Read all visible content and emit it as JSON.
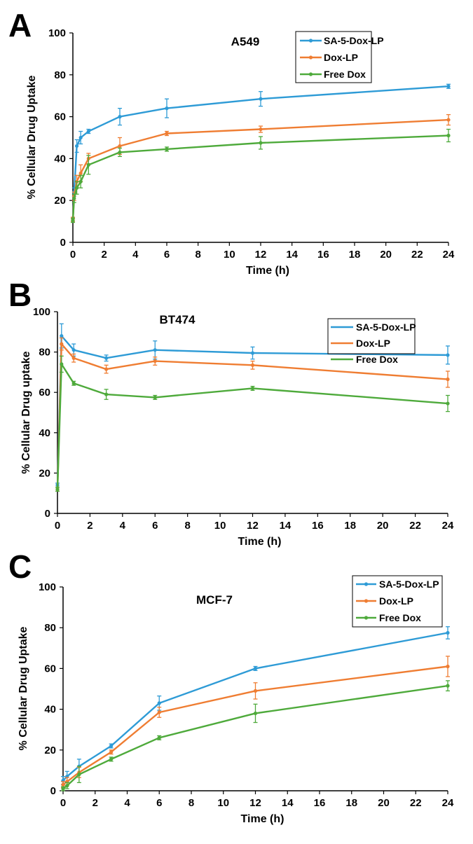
{
  "colors": {
    "SA-5-Dox-LP": "#2e9bd6",
    "Dox-LP": "#ef7d32",
    "Free Dox": "#4eaa3b"
  },
  "chart_data": [
    {
      "panel": "A",
      "type": "line",
      "title": "A549",
      "xlabel": "Time (h)",
      "ylabel": "% Cellular Drug Uptake",
      "xlim": [
        0,
        24
      ],
      "ylim": [
        0,
        100
      ],
      "xticks": [
        0,
        2,
        4,
        6,
        8,
        10,
        12,
        14,
        16,
        18,
        20,
        22,
        24
      ],
      "yticks": [
        0,
        20,
        40,
        60,
        80,
        100
      ],
      "legend_style": "marker",
      "legend_position": "top-right",
      "series": [
        {
          "name": "SA-5-Dox-LP",
          "x": [
            0,
            0.08,
            0.25,
            0.5,
            1,
            3,
            6,
            12,
            24
          ],
          "y": [
            11,
            24,
            46,
            50,
            53,
            60,
            64,
            68.5,
            74.5
          ],
          "err": [
            1,
            2,
            3,
            3,
            1,
            4,
            4.5,
            3.5,
            1
          ]
        },
        {
          "name": "Dox-LP",
          "x": [
            0,
            0.08,
            0.25,
            0.5,
            1,
            3,
            6,
            12,
            24
          ],
          "y": [
            11,
            22,
            29,
            33,
            40,
            46,
            52,
            54,
            58.5
          ],
          "err": [
            1,
            2,
            3,
            4,
            2.5,
            4,
            1,
            1.5,
            2.5
          ]
        },
        {
          "name": "Free Dox",
          "x": [
            0,
            0.08,
            0.25,
            0.5,
            1,
            3,
            6,
            12,
            24
          ],
          "y": [
            10.5,
            21,
            26,
            29,
            37,
            43,
            44.5,
            47.5,
            51
          ],
          "err": [
            1,
            2,
            3,
            3,
            4.5,
            2,
            1,
            3,
            3
          ]
        }
      ]
    },
    {
      "panel": "B",
      "type": "line",
      "title": "BT474",
      "xlabel": "Time (h)",
      "ylabel": "% Cellular Drug uptake",
      "xlim": [
        0,
        24
      ],
      "ylim": [
        0,
        100
      ],
      "xticks": [
        0,
        2,
        4,
        6,
        8,
        10,
        12,
        14,
        16,
        18,
        20,
        22,
        24
      ],
      "yticks": [
        0,
        20,
        40,
        60,
        80,
        100
      ],
      "legend_style": "line",
      "legend_position": "top-right",
      "series": [
        {
          "name": "SA-5-Dox-LP",
          "x": [
            0,
            0.25,
            1,
            3,
            6,
            12,
            24
          ],
          "y": [
            14,
            88,
            81,
            77,
            81,
            79.5,
            78.5
          ],
          "err": [
            1,
            6,
            3,
            1.5,
            4.5,
            3,
            4.5
          ]
        },
        {
          "name": "Dox-LP",
          "x": [
            0,
            0.25,
            1,
            3,
            6,
            12,
            24
          ],
          "y": [
            12,
            84,
            77,
            71.5,
            75.5,
            73.5,
            66.5
          ],
          "err": [
            1,
            3,
            2,
            2,
            2,
            2,
            4
          ]
        },
        {
          "name": "Free Dox",
          "x": [
            0,
            0.25,
            1,
            3,
            6,
            12,
            24
          ],
          "y": [
            12,
            74,
            64.5,
            59,
            57.5,
            62,
            54.5
          ],
          "err": [
            1,
            4,
            1,
            2.5,
            1,
            1,
            4
          ]
        }
      ]
    },
    {
      "panel": "C",
      "type": "line",
      "title": "MCF-7",
      "xlabel": "Time (h)",
      "ylabel": "% Cellular Drug Uptake",
      "xlim": [
        0,
        24
      ],
      "ylim": [
        0,
        100
      ],
      "xticks": [
        0,
        2,
        4,
        6,
        8,
        10,
        12,
        14,
        16,
        18,
        20,
        22,
        24
      ],
      "yticks": [
        0,
        20,
        40,
        60,
        80,
        100
      ],
      "legend_style": "marker",
      "legend_position": "top-right",
      "series": [
        {
          "name": "SA-5-Dox-LP",
          "x": [
            0,
            0.25,
            1,
            3,
            6,
            12,
            24
          ],
          "y": [
            5,
            7,
            12,
            22,
            43,
            60,
            77.5
          ],
          "err": [
            2,
            2.5,
            3.5,
            1,
            3.5,
            1,
            3
          ]
        },
        {
          "name": "Dox-LP",
          "x": [
            0,
            0.25,
            1,
            3,
            6,
            12,
            24
          ],
          "y": [
            3,
            4.5,
            9,
            19,
            38.5,
            49,
            61
          ],
          "err": [
            1.5,
            2,
            2.5,
            1,
            2.5,
            4,
            5
          ]
        },
        {
          "name": "Free Dox",
          "x": [
            0,
            0.25,
            1,
            3,
            6,
            12,
            24
          ],
          "y": [
            1,
            2.5,
            8,
            15.5,
            26,
            38,
            51.5
          ],
          "err": [
            1,
            1.5,
            4,
            1,
            1,
            4.5,
            2.5
          ]
        }
      ]
    }
  ]
}
